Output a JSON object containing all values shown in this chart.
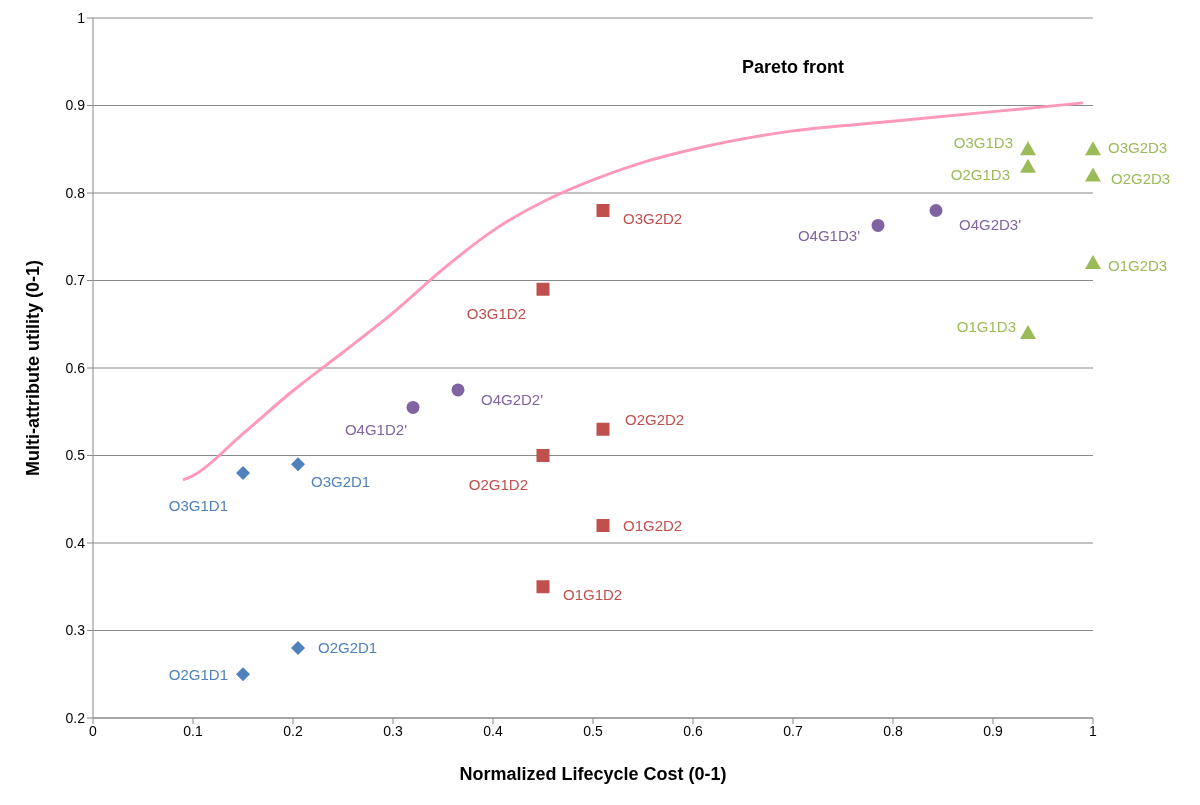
{
  "chart_data": {
    "type": "scatter",
    "xlabel": "Normalized Lifecycle Cost (0-1)",
    "ylabel": "Multi-attribute utility (0-1)",
    "xlim": [
      0,
      1
    ],
    "xticks": [
      0,
      0.1,
      0.2,
      0.3,
      0.4,
      0.5,
      0.6,
      0.7,
      0.8,
      0.9,
      1
    ],
    "ylim": [
      0.2,
      1
    ],
    "yticks": [
      0.2,
      0.3,
      0.4,
      0.5,
      0.6,
      0.7,
      0.8,
      0.9,
      1
    ],
    "grid": "y",
    "series": [
      {
        "marker": "diamond",
        "color": "#4f81bd",
        "x": [
          0.15,
          0.205,
          0.15,
          0.205
        ],
        "values": [
          0.48,
          0.49,
          0.25,
          0.28
        ],
        "value_labels": [
          "O3G1D1",
          "O3G2D1",
          "O2G1D1",
          "O2G2D1"
        ]
      },
      {
        "marker": "square",
        "color": "#c0504d",
        "x": [
          0.45,
          0.51,
          0.45,
          0.51,
          0.51,
          0.45
        ],
        "values": [
          0.69,
          0.78,
          0.5,
          0.53,
          0.42,
          0.35
        ],
        "value_labels": [
          "O3G1D2",
          "O3G2D2",
          "O2G1D2",
          "O2G2D2",
          "O1G2D2",
          "O1G1D2"
        ]
      },
      {
        "marker": "circle",
        "color": "#8064a2",
        "x": [
          0.32,
          0.365,
          0.785,
          0.843
        ],
        "values": [
          0.555,
          0.575,
          0.763,
          0.78
        ],
        "value_labels": [
          "O4G1D2'",
          "O4G2D2'",
          "O4G1D3'",
          "O4G2D3'"
        ]
      },
      {
        "marker": "triangle",
        "color": "#9bbb59",
        "x": [
          0.935,
          1,
          0.935,
          1,
          1,
          0.935
        ],
        "values": [
          0.85,
          0.85,
          0.83,
          0.82,
          0.72,
          0.64
        ],
        "value_labels": [
          "O3G1D3",
          "O3G2D3",
          "O2G1D3",
          "O2G2D3",
          "O1G2D3",
          "O1G1D3"
        ]
      },
      {
        "type": "line",
        "name": "Pareto front",
        "marker": "none",
        "color": "#ff99bb",
        "x": [
          0.09,
          0.1,
          0.15,
          0.2,
          0.25,
          0.3,
          0.35,
          0.4,
          0.45,
          0.5,
          0.55,
          0.6,
          0.7,
          0.8,
          0.9,
          0.99
        ],
        "values": [
          0.472,
          0.477,
          0.525,
          0.574,
          0.618,
          0.663,
          0.713,
          0.757,
          0.79,
          0.815,
          0.835,
          0.85,
          0.871,
          0.882,
          0.893,
          0.903
        ]
      }
    ]
  }
}
